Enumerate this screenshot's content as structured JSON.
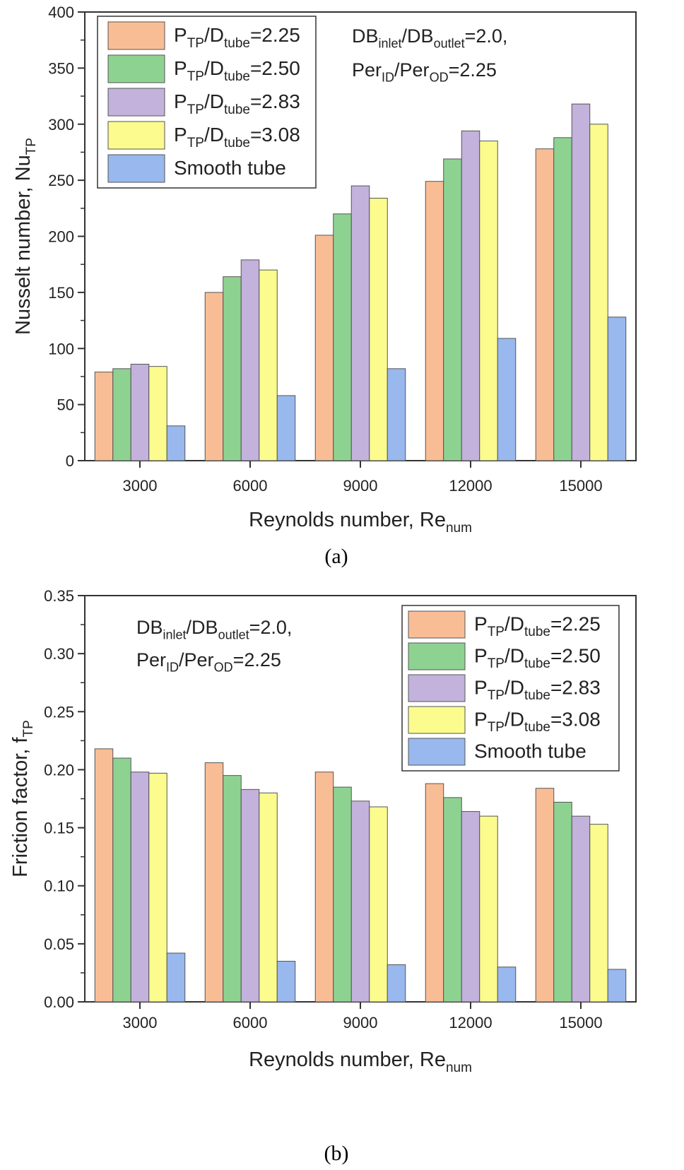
{
  "colors": {
    "s1": "#F9BD95",
    "s2": "#8ED292",
    "s3": "#C3B2DB",
    "s4": "#FBFB8E",
    "s5": "#98B8EE"
  },
  "chart_data": [
    {
      "id": "a",
      "type": "bar",
      "caption": "(a)",
      "categories": [
        "3000",
        "6000",
        "9000",
        "12000",
        "15000"
      ],
      "xlabel_main": "Reynolds number, Re",
      "xlabel_sub": "num",
      "ylabel_main": "Nusselt number, Nu",
      "ylabel_sub": "TP",
      "ylim": [
        0,
        400
      ],
      "yticks": [
        "0",
        "50",
        "100",
        "150",
        "200",
        "250",
        "300",
        "350",
        "400"
      ],
      "legend_position": "top-left",
      "series": [
        {
          "name": "P_TP/D_tube=2.25",
          "label": {
            "p": "P",
            "p_sub": "TP",
            "d": "/D",
            "d_sub": "tube",
            "value": "=2.25"
          },
          "values": [
            79,
            150,
            201,
            249,
            278
          ]
        },
        {
          "name": "P_TP/D_tube=2.50",
          "label": {
            "p": "P",
            "p_sub": "TP",
            "d": "/D",
            "d_sub": "tube",
            "value": "=2.50"
          },
          "values": [
            82,
            164,
            220,
            269,
            288
          ]
        },
        {
          "name": "P_TP/D_tube=2.83",
          "label": {
            "p": "P",
            "p_sub": "TP",
            "d": "/D",
            "d_sub": "tube",
            "value": "=2.83"
          },
          "values": [
            86,
            179,
            245,
            294,
            318
          ]
        },
        {
          "name": "P_TP/D_tube=3.08",
          "label": {
            "p": "P",
            "p_sub": "TP",
            "d": "/D",
            "d_sub": "tube",
            "value": "=3.08"
          },
          "values": [
            84,
            170,
            234,
            285,
            300
          ]
        },
        {
          "name": "Smooth tube",
          "label": {
            "plain": "Smooth tube"
          },
          "values": [
            31,
            58,
            82,
            109,
            128
          ]
        }
      ],
      "annotation": {
        "line1": {
          "a": "DB",
          "a_sub": "inlet",
          "b": "/DB",
          "b_sub": "outlet",
          "c": "=2.0,"
        },
        "line2": {
          "a": "Per",
          "a_sub": "ID",
          "b": "/Per",
          "b_sub": "OD",
          "c": "=2.25"
        }
      }
    },
    {
      "id": "b",
      "type": "bar",
      "caption": "(b)",
      "categories": [
        "3000",
        "6000",
        "9000",
        "12000",
        "15000"
      ],
      "xlabel_main": "Reynolds number, Re",
      "xlabel_sub": "num",
      "ylabel_main": "Friction factor, f",
      "ylabel_sub": "TP",
      "ylim": [
        0,
        0.35
      ],
      "yticks": [
        "0.00",
        "0.05",
        "0.10",
        "0.15",
        "0.20",
        "0.25",
        "0.30",
        "0.35"
      ],
      "legend_position": "top-right",
      "series": [
        {
          "name": "P_TP/D_tube=2.25",
          "label": {
            "p": "P",
            "p_sub": "TP",
            "d": "/D",
            "d_sub": "tube",
            "value": "=2.25"
          },
          "values": [
            0.218,
            0.206,
            0.198,
            0.188,
            0.184
          ]
        },
        {
          "name": "P_TP/D_tube=2.50",
          "label": {
            "p": "P",
            "p_sub": "TP",
            "d": "/D",
            "d_sub": "tube",
            "value": "=2.50"
          },
          "values": [
            0.21,
            0.195,
            0.185,
            0.176,
            0.172
          ]
        },
        {
          "name": "P_TP/D_tube=2.83",
          "label": {
            "p": "P",
            "p_sub": "TP",
            "d": "/D",
            "d_sub": "tube",
            "value": "=2.83"
          },
          "values": [
            0.198,
            0.183,
            0.173,
            0.164,
            0.16
          ]
        },
        {
          "name": "P_TP/D_tube=3.08",
          "label": {
            "p": "P",
            "p_sub": "TP",
            "d": "/D",
            "d_sub": "tube",
            "value": "=3.08"
          },
          "values": [
            0.197,
            0.18,
            0.168,
            0.16,
            0.153
          ]
        },
        {
          "name": "Smooth tube",
          "label": {
            "plain": "Smooth tube"
          },
          "values": [
            0.042,
            0.035,
            0.032,
            0.03,
            0.028
          ]
        }
      ],
      "annotation": {
        "line1": {
          "a": "DB",
          "a_sub": "inlet",
          "b": "/DB",
          "b_sub": "outlet",
          "c": "=2.0,"
        },
        "line2": {
          "a": "Per",
          "a_sub": "ID",
          "b": "/Per",
          "b_sub": "OD",
          "c": "=2.25"
        }
      }
    }
  ]
}
